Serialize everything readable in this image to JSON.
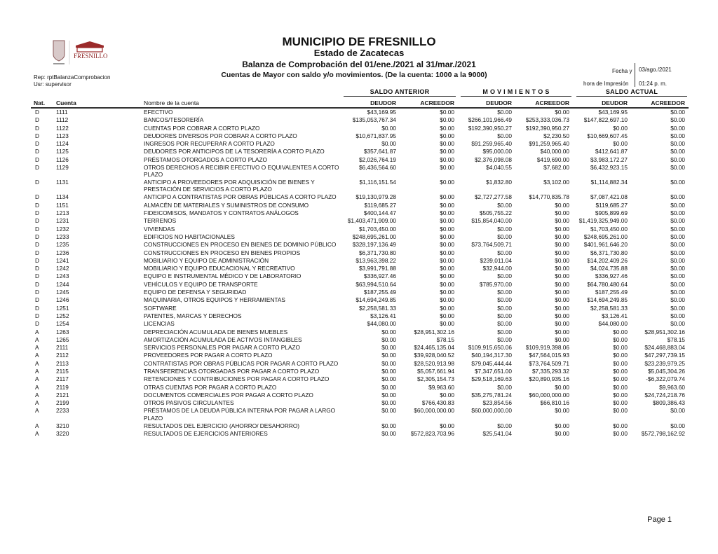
{
  "header": {
    "title": "MUNICIPIO DE FRESNILLO",
    "state": "Estado de Zacatecas",
    "report": "Balanza de Comprobación del 01/ene./2021 al 31/mar./2021",
    "subtitle": "Cuentas de Mayor con saldo y/o movimientos. (De la cuenta: 1000 a la 9000)",
    "rep": "Rep: rptBalanzaComprobacion",
    "usr": "Usr: supervisor",
    "fecha_label": "Fecha y",
    "fecha": "03/ago./2021",
    "hora_label": "hora de Impresión",
    "hora": "01:24 p. m.",
    "logo_text": "FRESNILLO"
  },
  "groups": {
    "anterior": "SALDO ANTERIOR",
    "movimientos": "M O V I M I E N T O S",
    "actual": "SALDO ACTUAL"
  },
  "columns": {
    "nat": "Nat.",
    "cuenta": "Cuenta",
    "nombre": "Nombre de la cuenta",
    "deudor": "DEUDOR",
    "acreedor": "ACREEDOR"
  },
  "rows": [
    [
      "D",
      "1111",
      "EFECTIVO",
      "$43,169.95",
      "$0.00",
      "$0.00",
      "$0.00",
      "$43,169.95",
      "$0.00"
    ],
    [
      "D",
      "1112",
      "BANCOS/TESORERÍA",
      "$135,053,767.34",
      "$0.00",
      "$266,101,966.49",
      "$253,333,036.73",
      "$147,822,697.10",
      "$0.00"
    ],
    [
      "D",
      "1122",
      "CUENTAS POR COBRAR A CORTO PLAZO",
      "$0.00",
      "$0.00",
      "$192,390,950.27",
      "$192,390,950.27",
      "$0.00",
      "$0.00"
    ],
    [
      "D",
      "1123",
      "DEUDORES DIVERSOS POR COBRAR A CORTO PLAZO",
      "$10,671,837.95",
      "$0.00",
      "$0.00",
      "$2,230.50",
      "$10,669,607.45",
      "$0.00"
    ],
    [
      "D",
      "1124",
      "INGRESOS POR RECUPERAR A CORTO PLAZO",
      "$0.00",
      "$0.00",
      "$91,259,965.40",
      "$91,259,965.40",
      "$0.00",
      "$0.00"
    ],
    [
      "D",
      "1125",
      "DEUDORES POR ANTICIPOS DE LA TESORERÍA A CORTO PLAZO",
      "$357,641.87",
      "$0.00",
      "$95,000.00",
      "$40,000.00",
      "$412,641.87",
      "$0.00"
    ],
    [
      "D",
      "1126",
      "PRÉSTAMOS OTORGADOS A CORTO PLAZO",
      "$2,026,764.19",
      "$0.00",
      "$2,376,098.08",
      "$419,690.00",
      "$3,983,172.27",
      "$0.00"
    ],
    [
      "D",
      "1129",
      "OTROS DERECHOS A RECIBIR EFECTIVO O EQUIVALENTES A CORTO PLAZO",
      "$6,436,564.60",
      "$0.00",
      "$4,040.55",
      "$7,682.00",
      "$6,432,923.15",
      "$0.00"
    ],
    [
      "D",
      "1131",
      "ANTICIPO A PROVEEDORES POR ADQUISICIÓN DE BIENES Y PRESTACIÓN DE SERVICIOS A CORTO PLAZO",
      "$1,116,151.54",
      "$0.00",
      "$1,832.80",
      "$3,102.00",
      "$1,114,882.34",
      "$0.00"
    ],
    [
      "D",
      "1134",
      "ANTICIPO A CONTRATISTAS POR OBRAS PÚBLICAS A CORTO PLAZO",
      "$19,130,979.28",
      "$0.00",
      "$2,727,277.58",
      "$14,770,835.78",
      "$7,087,421.08",
      "$0.00"
    ],
    [
      "D",
      "1151",
      "ALMACÉN DE MATERIALES Y SUMINISTROS DE CONSUMO",
      "$119,685.27",
      "$0.00",
      "$0.00",
      "$0.00",
      "$119,685.27",
      "$0.00"
    ],
    [
      "D",
      "1213",
      "FIDEICOMISOS, MANDATOS Y CONTRATOS ANÁLOGOS",
      "$400,144.47",
      "$0.00",
      "$505,755.22",
      "$0.00",
      "$905,899.69",
      "$0.00"
    ],
    [
      "D",
      "1231",
      "TERRENOS",
      "$1,403,471,909.00",
      "$0.00",
      "$15,854,040.00",
      "$0.00",
      "$1,419,325,949.00",
      "$0.00"
    ],
    [
      "D",
      "1232",
      "VIVIENDAS",
      "$1,703,450.00",
      "$0.00",
      "$0.00",
      "$0.00",
      "$1,703,450.00",
      "$0.00"
    ],
    [
      "D",
      "1233",
      "EDIFICIOS NO HABITACIONALES",
      "$248,695,261.00",
      "$0.00",
      "$0.00",
      "$0.00",
      "$248,695,261.00",
      "$0.00"
    ],
    [
      "D",
      "1235",
      "CONSTRUCCIONES EN PROCESO EN BIENES DE DOMINIO PÚBLICO",
      "$328,197,136.49",
      "$0.00",
      "$73,764,509.71",
      "$0.00",
      "$401,961,646.20",
      "$0.00"
    ],
    [
      "D",
      "1236",
      "CONSTRUCCIONES EN PROCESO EN BIENES PROPIOS",
      "$6,371,730.80",
      "$0.00",
      "$0.00",
      "$0.00",
      "$6,371,730.80",
      "$0.00"
    ],
    [
      "D",
      "1241",
      "MOBILIARIO Y EQUIPO DE ADMINISTRACIÓN",
      "$13,963,398.22",
      "$0.00",
      "$239,011.04",
      "$0.00",
      "$14,202,409.26",
      "$0.00"
    ],
    [
      "D",
      "1242",
      "MOBILIARIO Y EQUIPO EDUCACIONAL Y RECREATIVO",
      "$3,991,791.88",
      "$0.00",
      "$32,944.00",
      "$0.00",
      "$4,024,735.88",
      "$0.00"
    ],
    [
      "D",
      "1243",
      "EQUIPO E INSTRUMENTAL MÉDICO Y DE LABORATORIO",
      "$336,927.46",
      "$0.00",
      "$0.00",
      "$0.00",
      "$336,927.46",
      "$0.00"
    ],
    [
      "D",
      "1244",
      "VEHÍCULOS Y EQUIPO DE TRANSPORTE",
      "$63,994,510.64",
      "$0.00",
      "$785,970.00",
      "$0.00",
      "$64,780,480.64",
      "$0.00"
    ],
    [
      "D",
      "1245",
      "EQUIPO DE DEFENSA Y SEGURIDAD",
      "$187,255.49",
      "$0.00",
      "$0.00",
      "$0.00",
      "$187,255.49",
      "$0.00"
    ],
    [
      "D",
      "1246",
      "MAQUINARIA, OTROS EQUIPOS Y HERRAMIENTAS",
      "$14,694,249.85",
      "$0.00",
      "$0.00",
      "$0.00",
      "$14,694,249.85",
      "$0.00"
    ],
    [
      "D",
      "1251",
      "SOFTWARE",
      "$2,258,581.33",
      "$0.00",
      "$0.00",
      "$0.00",
      "$2,258,581.33",
      "$0.00"
    ],
    [
      "D",
      "1252",
      "PATENTES, MARCAS Y DERECHOS",
      "$3,126.41",
      "$0.00",
      "$0.00",
      "$0.00",
      "$3,126.41",
      "$0.00"
    ],
    [
      "D",
      "1254",
      "LICENCIAS",
      "$44,080.00",
      "$0.00",
      "$0.00",
      "$0.00",
      "$44,080.00",
      "$0.00"
    ],
    [
      "A",
      "1263",
      "DEPRECIACIÓN ACUMULADA DE BIENES MUEBLES",
      "$0.00",
      "$28,951,302.16",
      "$0.00",
      "$0.00",
      "$0.00",
      "$28,951,302.16"
    ],
    [
      "A",
      "1265",
      "AMORTIZACIÓN ACUMULADA DE ACTIVOS INTANGIBLES",
      "$0.00",
      "$78.15",
      "$0.00",
      "$0.00",
      "$0.00",
      "$78.15"
    ],
    [
      "A",
      "2111",
      "SERVICIOS PERSONALES POR PAGAR A CORTO PLAZO",
      "$0.00",
      "$24,465,135.04",
      "$109,915,650.06",
      "$109,919,398.06",
      "$0.00",
      "$24,468,883.04"
    ],
    [
      "A",
      "2112",
      "PROVEEDORES POR PAGAR A CORTO PLAZO",
      "$0.00",
      "$39,928,040.52",
      "$40,194,317.30",
      "$47,564,015.93",
      "$0.00",
      "$47,297,739.15"
    ],
    [
      "A",
      "2113",
      "CONTRATISTAS POR OBRAS PÚBLICAS POR PAGAR A CORTO PLAZO",
      "$0.00",
      "$28,520,913.98",
      "$79,045,444.44",
      "$73,764,509.71",
      "$0.00",
      "$23,239,979.25"
    ],
    [
      "A",
      "2115",
      "TRANSFERENCIAS OTORGADAS POR PAGAR A CORTO PLAZO",
      "$0.00",
      "$5,057,661.94",
      "$7,347,651.00",
      "$7,335,293.32",
      "$0.00",
      "$5,045,304.26"
    ],
    [
      "A",
      "2117",
      "RETENCIONES Y CONTRIBUCIONES POR PAGAR A CORTO PLAZO",
      "$0.00",
      "$2,305,154.73",
      "$29,518,169.63",
      "$20,890,935.16",
      "$0.00",
      "-$6,322,079.74"
    ],
    [
      "A",
      "2119",
      "OTRAS CUENTAS POR PAGAR A CORTO PLAZO",
      "$0.00",
      "$9,963.60",
      "$0.00",
      "$0.00",
      "$0.00",
      "$9,963.60"
    ],
    [
      "A",
      "2121",
      "DOCUMENTOS COMERCIALES POR PAGAR A CORTO PLAZO",
      "$0.00",
      "$0.00",
      "$35,275,781.24",
      "$60,000,000.00",
      "$0.00",
      "$24,724,218.76"
    ],
    [
      "A",
      "2199",
      "OTROS PASIVOS CIRCULANTES",
      "$0.00",
      "$766,430.83",
      "$23,854.56",
      "$66,810.16",
      "$0.00",
      "$809,386.43"
    ],
    [
      "A",
      "2233",
      "PRÉSTAMOS DE LA DEUDA PÚBLICA INTERNA POR PAGAR A LARGO PLAZO",
      "$0.00",
      "$60,000,000.00",
      "$60,000,000.00",
      "$0.00",
      "$0.00",
      "$0.00"
    ],
    [
      "A",
      "3210",
      "RESULTADOS DEL EJERCICIO (AHORRO/ DESAHORRO)",
      "$0.00",
      "$0.00",
      "$0.00",
      "$0.00",
      "$0.00",
      "$0.00"
    ],
    [
      "A",
      "3220",
      "RESULTADOS DE EJERCICIOS ANTERIORES",
      "$0.00",
      "$572,823,703.96",
      "$25,541.04",
      "$0.00",
      "$0.00",
      "$572,798,162.92"
    ]
  ],
  "footer": {
    "page": "Page 1"
  }
}
